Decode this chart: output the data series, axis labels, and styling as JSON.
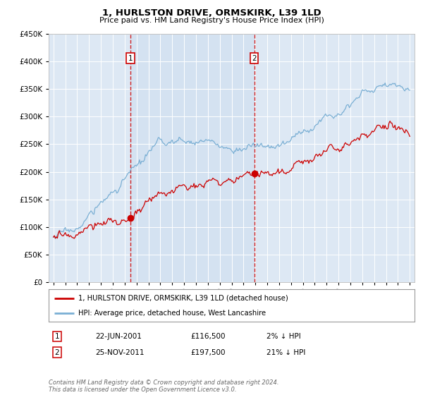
{
  "title": "1, HURLSTON DRIVE, ORMSKIRK, L39 1LD",
  "subtitle": "Price paid vs. HM Land Registry's House Price Index (HPI)",
  "legend_line1": "1, HURLSTON DRIVE, ORMSKIRK, L39 1LD (detached house)",
  "legend_line2": "HPI: Average price, detached house, West Lancashire",
  "sale1_date": "22-JUN-2001",
  "sale1_price": "£116,500",
  "sale1_hpi": "2% ↓ HPI",
  "sale1_year": 2001.47,
  "sale1_value": 116500,
  "sale2_date": "25-NOV-2011",
  "sale2_price": "£197,500",
  "sale2_hpi": "21% ↓ HPI",
  "sale2_year": 2011.9,
  "sale2_value": 197500,
  "ylim": [
    0,
    450000
  ],
  "yticks": [
    0,
    50000,
    100000,
    150000,
    200000,
    250000,
    300000,
    350000,
    400000,
    450000
  ],
  "background_color": "#ffffff",
  "plot_bg_color": "#dde8f4",
  "highlight_bg_color": "#ccddf0",
  "grid_color": "#ffffff",
  "red_color": "#cc0000",
  "blue_color": "#7aafd4",
  "marker_box_color": "#cc0000",
  "xlim_left": 1994.6,
  "xlim_right": 2025.4,
  "footnote": "Contains HM Land Registry data © Crown copyright and database right 2024.\nThis data is licensed under the Open Government Licence v3.0."
}
